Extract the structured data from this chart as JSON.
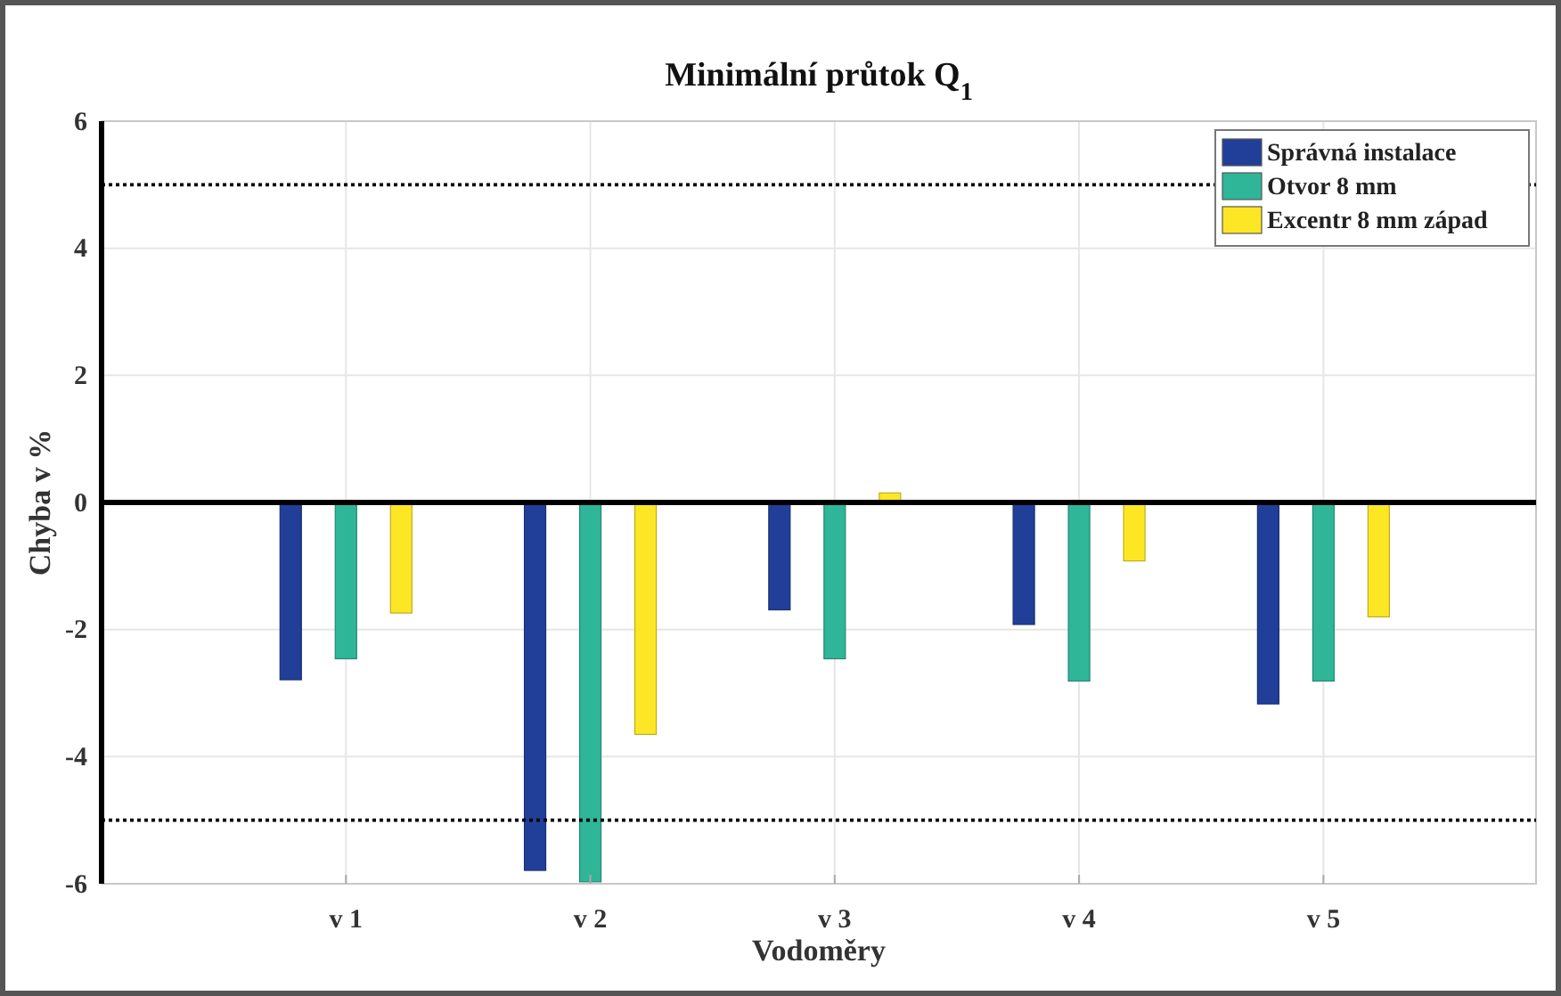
{
  "chart_data": {
    "type": "bar",
    "title": "Minimální průtok Q$_{1}$",
    "xlabel": "Vodoměry",
    "ylabel": "Chyba v %",
    "categories": [
      "v 1",
      "v 2",
      "v 3",
      "v 4",
      "v 5"
    ],
    "series": [
      {
        "name": "Správná instalace",
        "color": "#213f99",
        "values": [
          -2.79,
          -5.79,
          -1.69,
          -1.92,
          -3.17
        ]
      },
      {
        "name": "Otvor 8 mm",
        "color": "#2fb699",
        "values": [
          -2.46,
          -5.97,
          -2.46,
          -2.81,
          -2.81
        ]
      },
      {
        "name": "Excentr 8 mm západ",
        "color": "#fde725",
        "values": [
          -1.74,
          -3.65,
          0.15,
          -0.92,
          -1.8
        ]
      }
    ],
    "ylim": [
      -6,
      6
    ],
    "yticks": [
      -6,
      -4,
      -2,
      0,
      2,
      4,
      6
    ],
    "grid": true,
    "legend": "top right",
    "ref_lines": [
      {
        "axis": "y",
        "value": 5,
        "color": "#000000",
        "line_style": "dotted"
      },
      {
        "axis": "y",
        "value": -5,
        "color": "#000000",
        "line_style": "dotted"
      },
      {
        "axis": "y",
        "value": 0,
        "color": "#000000",
        "line_style": "solid"
      }
    ]
  }
}
